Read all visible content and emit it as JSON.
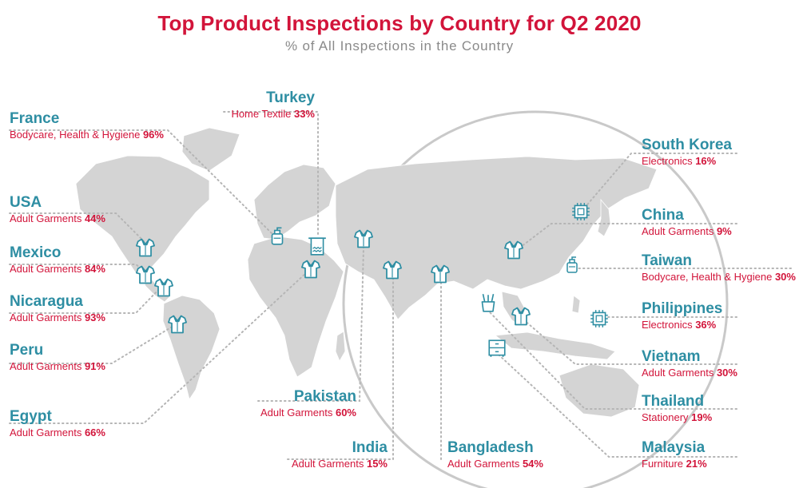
{
  "header": {
    "title": "Top Product Inspections by Country for Q2 2020",
    "subtitle": "% of All Inspections in the Country"
  },
  "colors": {
    "title": "#d2143a",
    "country": "#2e8ea3",
    "category": "#d2143a",
    "land": "#d4d4d4",
    "icon": "#2e8ea3",
    "leader": "#b9b9b9"
  },
  "countries": [
    {
      "id": "france",
      "name": "France",
      "category": "Bodycare, Health & Hygiene",
      "percent": "96%",
      "icon": "bottle-icon"
    },
    {
      "id": "turkey",
      "name": "Turkey",
      "category": "Home Textile",
      "percent": "33%",
      "icon": "towel-icon"
    },
    {
      "id": "usa",
      "name": "USA",
      "category": "Adult Garments",
      "percent": "44%",
      "icon": "shirt-icon"
    },
    {
      "id": "mexico",
      "name": "Mexico",
      "category": "Adult Garments",
      "percent": "84%",
      "icon": "shirt-icon"
    },
    {
      "id": "nicaragua",
      "name": "Nicaragua",
      "category": "Adult Garments",
      "percent": "93%",
      "icon": "shirt-icon"
    },
    {
      "id": "peru",
      "name": "Peru",
      "category": "Adult Garments",
      "percent": "91%",
      "icon": "shirt-icon"
    },
    {
      "id": "egypt",
      "name": "Egypt",
      "category": "Adult Garments",
      "percent": "66%",
      "icon": "shirt-icon"
    },
    {
      "id": "pakistan",
      "name": "Pakistan",
      "category": "Adult Garments",
      "percent": "60%",
      "icon": "shirt-icon"
    },
    {
      "id": "india",
      "name": "India",
      "category": "Adult Garments",
      "percent": "15%",
      "icon": "shirt-icon"
    },
    {
      "id": "bangladesh",
      "name": "Bangladesh",
      "category": "Adult Garments",
      "percent": "54%",
      "icon": "shirt-icon"
    },
    {
      "id": "south-korea",
      "name": "South Korea",
      "category": "Electronics",
      "percent": "16%",
      "icon": "chip-icon"
    },
    {
      "id": "china",
      "name": "China",
      "category": "Adult Garments",
      "percent": "9%",
      "icon": "shirt-icon"
    },
    {
      "id": "taiwan",
      "name": "Taiwan",
      "category": "Bodycare, Health & Hygiene",
      "percent": "30%",
      "icon": "bottle-icon"
    },
    {
      "id": "philippines",
      "name": "Philippines",
      "category": "Electronics",
      "percent": "36%",
      "icon": "chip-icon"
    },
    {
      "id": "vietnam",
      "name": "Vietnam",
      "category": "Adult Garments",
      "percent": "30%",
      "icon": "shirt-icon"
    },
    {
      "id": "thailand",
      "name": "Thailand",
      "category": "Stationery",
      "percent": "19%",
      "icon": "pencil-cup-icon"
    },
    {
      "id": "malaysia",
      "name": "Malaysia",
      "category": "Furniture",
      "percent": "21%",
      "icon": "cabinet-icon"
    }
  ]
}
